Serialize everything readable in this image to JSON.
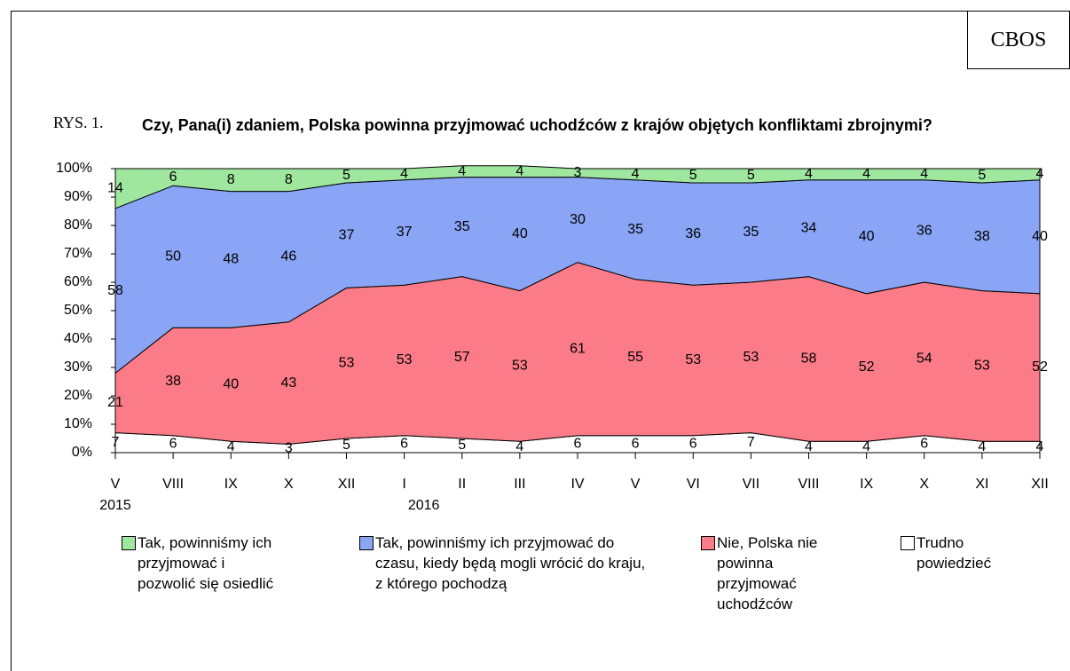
{
  "brand": "CBOS",
  "figure_label": "RYS. 1.",
  "chart_data": {
    "type": "stacked_area",
    "title": "Czy, Pana(i) zdaniem, Polska powinna przyjmować uchodźców z krajów objętych konfliktami zbrojnymi?",
    "categories": [
      "V",
      "VIII",
      "IX",
      "X",
      "XII",
      "I",
      "II",
      "III",
      "IV",
      "V",
      "VI",
      "VII",
      "VIII",
      "IX",
      "X",
      "XI",
      "XII"
    ],
    "category_sublabels": [
      "2015",
      null,
      null,
      null,
      null,
      "2016",
      null,
      null,
      null,
      null,
      null,
      null,
      null,
      null,
      null,
      null,
      null
    ],
    "series": [
      {
        "name": "Tak, powinniśmy ich przyjmować i pozwolić się osiedlić",
        "color": "#9fe69f",
        "values": [
          14,
          6,
          8,
          8,
          5,
          4,
          4,
          4,
          3,
          4,
          5,
          5,
          4,
          4,
          4,
          5,
          4
        ]
      },
      {
        "name": "Tak, powinniśmy ich przyjmować do czasu, kiedy będą mogli wrócić do kraju, z którego pochodzą",
        "color": "#8aa5f5",
        "values": [
          58,
          50,
          48,
          46,
          37,
          37,
          35,
          40,
          30,
          35,
          36,
          35,
          34,
          40,
          36,
          38,
          40
        ]
      },
      {
        "name": "Nie, Polska nie powinna przyjmować uchodźców",
        "color": "#fb7c88",
        "values": [
          21,
          38,
          40,
          43,
          53,
          53,
          57,
          53,
          61,
          55,
          53,
          53,
          58,
          52,
          54,
          53,
          52
        ]
      },
      {
        "name": "Trudno powiedzieć",
        "color": "#ffffff",
        "values": [
          7,
          6,
          4,
          3,
          5,
          6,
          5,
          4,
          6,
          6,
          6,
          7,
          4,
          4,
          6,
          4,
          4
        ]
      }
    ],
    "ylim": [
      0,
      100
    ],
    "yticks": [
      {
        "value": 0,
        "label": "0%"
      },
      {
        "value": 10,
        "label": "10%"
      },
      {
        "value": 20,
        "label": "20%"
      },
      {
        "value": 30,
        "label": "30%"
      },
      {
        "value": 40,
        "label": "40%"
      },
      {
        "value": 50,
        "label": "50%"
      },
      {
        "value": 60,
        "label": "60%"
      },
      {
        "value": 70,
        "label": "70%"
      },
      {
        "value": 80,
        "label": "80%"
      },
      {
        "value": 90,
        "label": "90%"
      },
      {
        "value": 100,
        "label": "100%"
      }
    ],
    "legend": "bottom"
  }
}
